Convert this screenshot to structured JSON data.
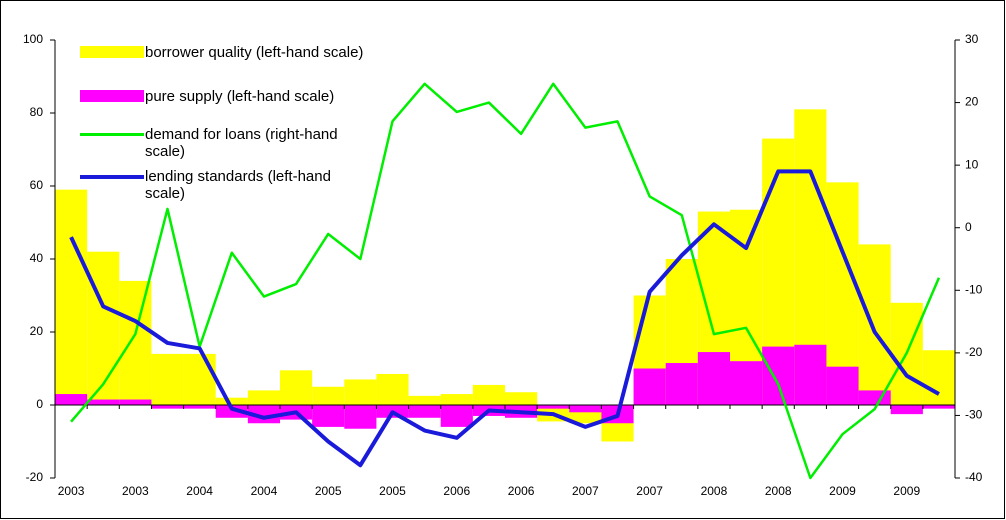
{
  "chart_data": {
    "type": "bar",
    "categories": [
      "2003",
      null,
      "2003",
      null,
      "2004",
      null,
      "2004",
      null,
      "2005",
      null,
      "2005",
      null,
      "2006",
      null,
      "2006",
      null,
      "2007",
      null,
      "2007",
      null,
      "2008",
      null,
      "2008",
      null,
      "2009",
      null,
      "2009",
      null
    ],
    "series": [
      {
        "name": "borrower quality (left-hand scale)",
        "type": "bar",
        "color": "#ffff00",
        "values": [
          59,
          42,
          34,
          14,
          14,
          2,
          4,
          9.5,
          5,
          7,
          8.5,
          2.5,
          3,
          5.5,
          3.5,
          -4.5,
          -5,
          -10,
          30,
          40,
          53,
          53.5,
          73,
          81,
          61,
          44,
          28,
          15
        ]
      },
      {
        "name": "pure supply (left-hand scale)",
        "type": "bar",
        "color": "#ff00ff",
        "values": [
          3,
          1.5,
          1.5,
          -1,
          -1,
          -3.5,
          -5,
          -4,
          -6,
          -6.5,
          -3.5,
          -3.5,
          -6,
          -3,
          -3.5,
          -1,
          -2,
          -5,
          10,
          11.5,
          14.5,
          12,
          16,
          16.5,
          10.5,
          4,
          -2.5,
          -1
        ]
      },
      {
        "name": "demand for loans (right-hand scale)",
        "type": "line",
        "axis": "y2",
        "color": "#00ee00",
        "values": [
          -31,
          -25,
          -17,
          3,
          -19,
          -4,
          -11,
          -9,
          -1,
          -5,
          17,
          23,
          18.5,
          20,
          15,
          23,
          16,
          17,
          5,
          2,
          -17,
          -16,
          -25,
          -40,
          -33,
          -29,
          -20,
          -8
        ]
      },
      {
        "name": "lending standards (left-hand scale)",
        "type": "line",
        "color": "#1a1adb",
        "values": [
          46,
          27,
          23,
          17,
          15.5,
          -1,
          -3.5,
          -2,
          -10,
          -16.5,
          -2,
          -7,
          -9,
          -1.5,
          -2,
          -2.5,
          -6,
          -3,
          31,
          41,
          49.5,
          43,
          64,
          64,
          42,
          20,
          8,
          3
        ]
      }
    ],
    "ylim": [
      -20,
      100
    ],
    "yticks": [
      -20,
      0,
      20,
      40,
      60,
      80,
      100
    ],
    "y2lim": [
      -40,
      30
    ],
    "y2ticks": [
      -40,
      -30,
      -20,
      -10,
      0,
      10,
      20,
      30
    ]
  }
}
